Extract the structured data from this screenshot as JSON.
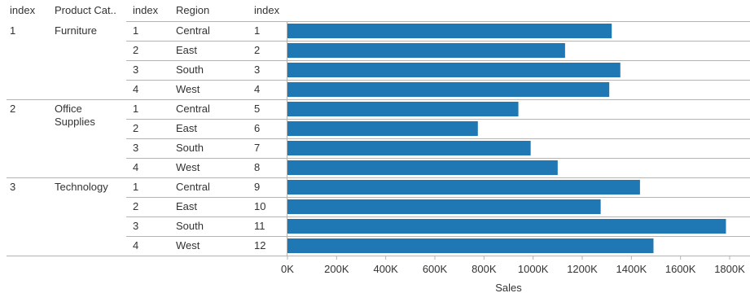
{
  "chart_data": {
    "type": "bar",
    "orientation": "horizontal",
    "title": "",
    "row_headers": [
      "index",
      "Product Cat..",
      "index",
      "Region",
      "index"
    ],
    "xlabel": "Sales",
    "xlim": [
      0,
      1800000
    ],
    "x_ticks": [
      {
        "value": 0,
        "label": "0K"
      },
      {
        "value": 200000,
        "label": "200K"
      },
      {
        "value": 400000,
        "label": "400K"
      },
      {
        "value": 600000,
        "label": "600K"
      },
      {
        "value": 800000,
        "label": "800K"
      },
      {
        "value": 1000000,
        "label": "1000K"
      },
      {
        "value": 1200000,
        "label": "1200K"
      },
      {
        "value": 1400000,
        "label": "1400K"
      },
      {
        "value": 1600000,
        "label": "1600K"
      },
      {
        "value": 1800000,
        "label": "1800K"
      }
    ],
    "groups": [
      {
        "index": "1",
        "category": "Furniture",
        "rows": [
          {
            "region_index": "1",
            "region": "Central",
            "row_index": "1",
            "sales": 1320000
          },
          {
            "region_index": "2",
            "region": "East",
            "row_index": "2",
            "sales": 1130000
          },
          {
            "region_index": "3",
            "region": "South",
            "row_index": "3",
            "sales": 1355000
          },
          {
            "region_index": "4",
            "region": "West",
            "row_index": "4",
            "sales": 1310000
          }
        ]
      },
      {
        "index": "2",
        "category": "Office Supplies",
        "rows": [
          {
            "region_index": "1",
            "region": "Central",
            "row_index": "5",
            "sales": 940000
          },
          {
            "region_index": "2",
            "region": "East",
            "row_index": "6",
            "sales": 775000
          },
          {
            "region_index": "3",
            "region": "South",
            "row_index": "7",
            "sales": 990000
          },
          {
            "region_index": "4",
            "region": "West",
            "row_index": "8",
            "sales": 1100000
          }
        ]
      },
      {
        "index": "3",
        "category": "Technology",
        "rows": [
          {
            "region_index": "1",
            "region": "Central",
            "row_index": "9",
            "sales": 1435000
          },
          {
            "region_index": "2",
            "region": "East",
            "row_index": "10",
            "sales": 1275000
          },
          {
            "region_index": "3",
            "region": "South",
            "row_index": "11",
            "sales": 1785000
          },
          {
            "region_index": "4",
            "region": "West",
            "row_index": "12",
            "sales": 1490000
          }
        ]
      }
    ],
    "colors": {
      "bar": "#1f77b4",
      "rule": "#b3b3b3",
      "text": "#333333"
    }
  }
}
